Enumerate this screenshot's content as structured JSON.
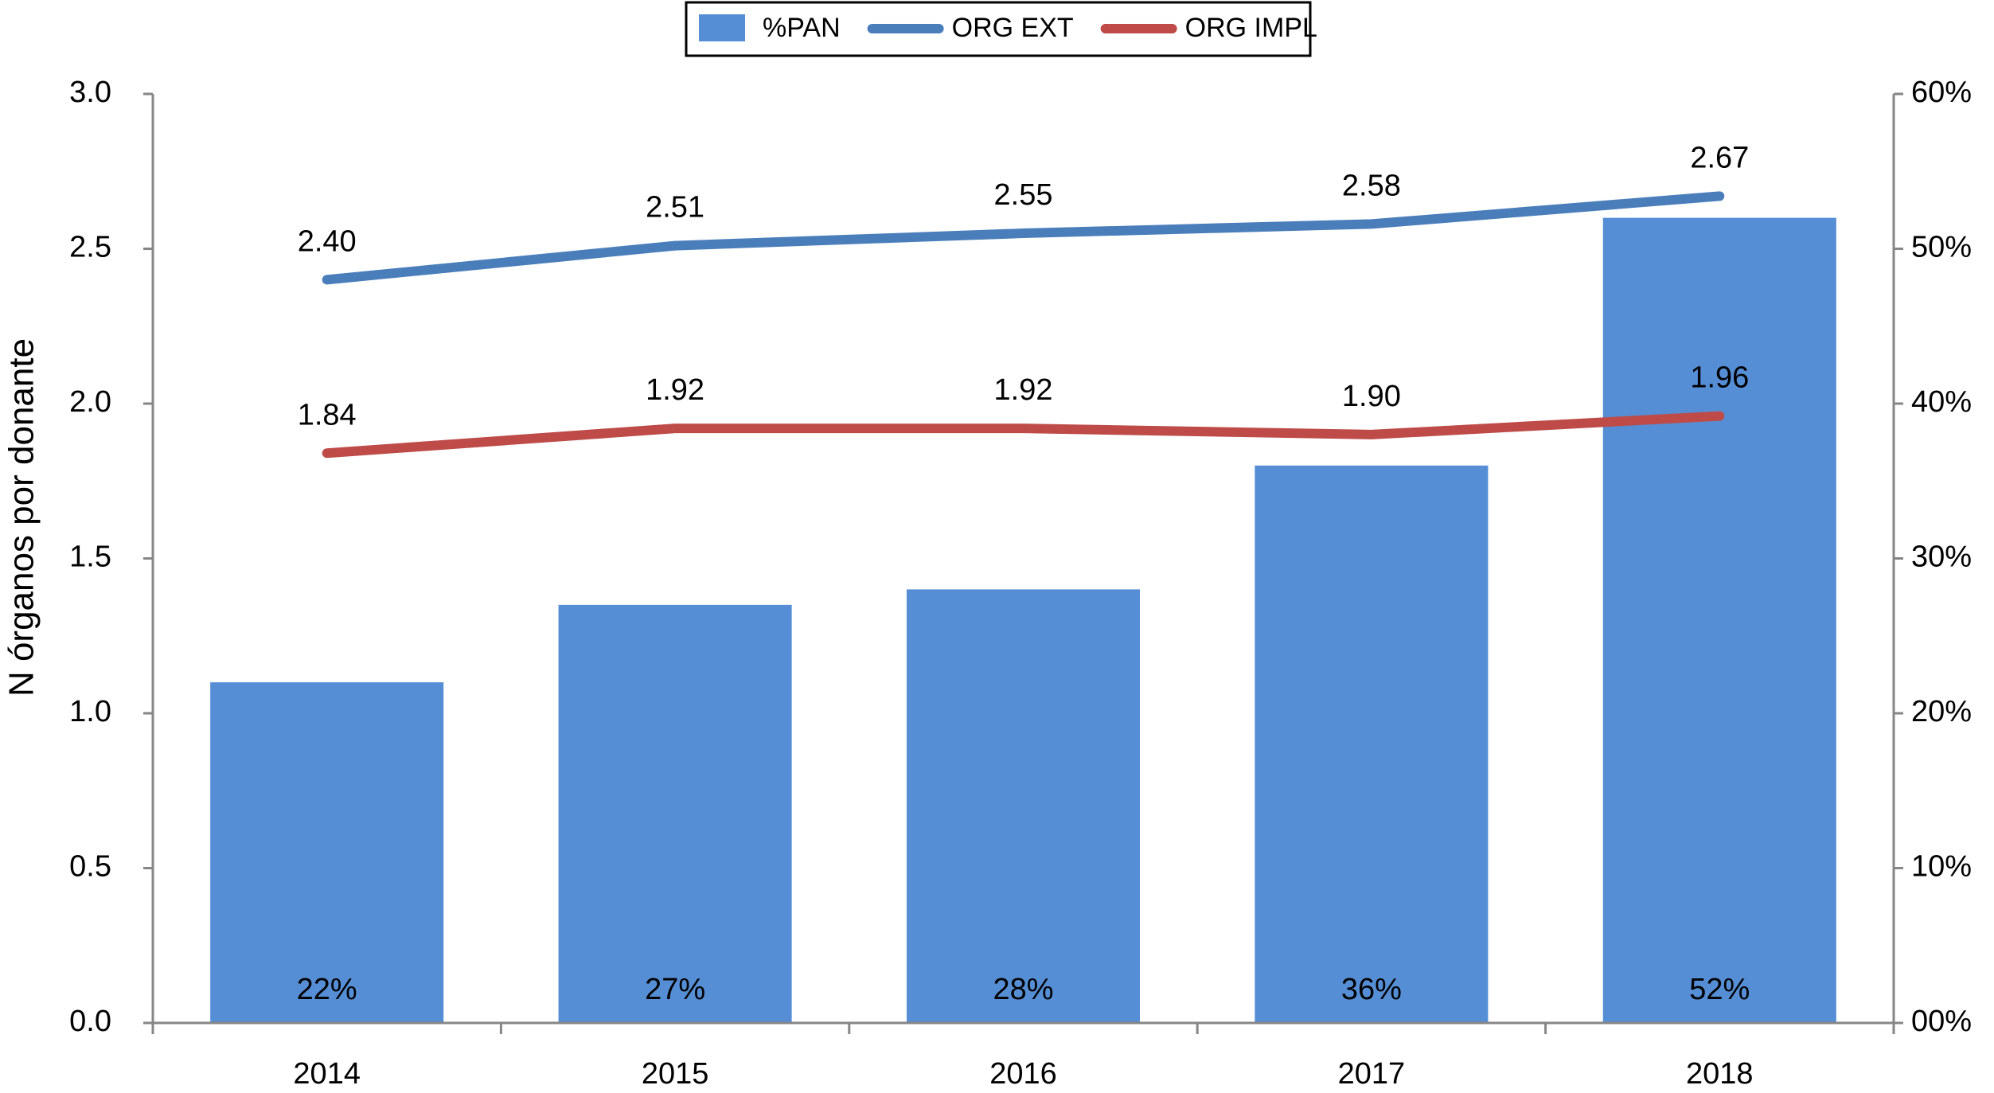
{
  "chart_data": {
    "type": "combo",
    "y_label": "N órganos por donante",
    "categories": [
      "2014",
      "2015",
      "2016",
      "2017",
      "2018"
    ],
    "series": [
      {
        "name": "%PAN",
        "type": "bar",
        "axis": "y2",
        "color": "#558ed5",
        "values": [
          22,
          27,
          28,
          36,
          52
        ],
        "value_labels": [
          "22%",
          "27%",
          "28%",
          "36%",
          "52%"
        ]
      },
      {
        "name": "ORG EXT",
        "type": "line",
        "color": "#4a7ebb",
        "values": [
          2.4,
          2.51,
          2.55,
          2.58,
          2.67
        ],
        "value_labels": [
          "2.40",
          "2.51",
          "2.55",
          "2.58",
          "2.67"
        ]
      },
      {
        "name": "ORG IMPL",
        "type": "line",
        "color": "#be4b48",
        "values": [
          1.84,
          1.92,
          1.92,
          1.9,
          1.96
        ],
        "value_labels": [
          "1.84",
          "1.92",
          "1.92",
          "1.90",
          "1.96"
        ]
      }
    ],
    "ylim": [
      0,
      3
    ],
    "yticks": [
      {
        "value": 0,
        "label": "0.0"
      },
      0.5,
      {
        "value": 1,
        "label": "1.0"
      },
      1.5,
      {
        "value": 2,
        "label": "2.0"
      },
      2.5,
      {
        "value": 3,
        "label": "3.0"
      }
    ],
    "y2lim": [
      0,
      60
    ],
    "y2ticks": [
      {
        "value": 0,
        "label": "00%"
      },
      {
        "value": 10,
        "label": "10%"
      },
      {
        "value": 20,
        "label": "20%"
      },
      {
        "value": 30,
        "label": "30%"
      },
      {
        "value": 40,
        "label": "40%"
      },
      {
        "value": 50,
        "label": "50%"
      },
      {
        "value": 60,
        "label": "60%"
      }
    ],
    "legend": "top",
    "grid": false
  }
}
